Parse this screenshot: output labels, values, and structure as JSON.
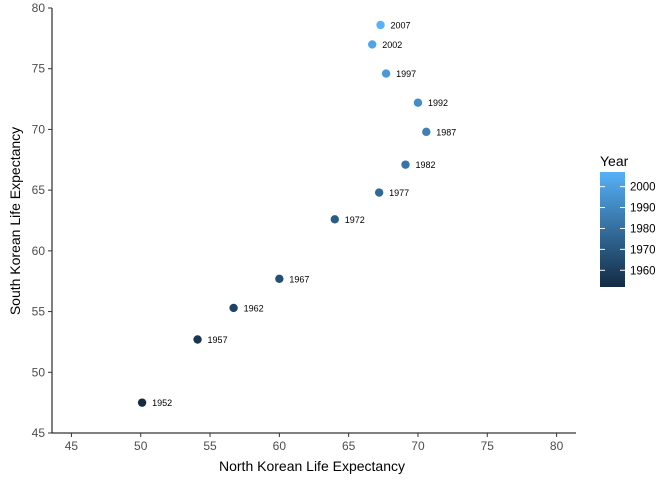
{
  "chart_data": {
    "type": "scatter",
    "title": "",
    "xlabel": "North Korean Life Expectancy",
    "ylabel": "South Korean Life Expectancy",
    "xlim": [
      43.6,
      81.4
    ],
    "ylim": [
      45,
      80
    ],
    "xticks": [
      45,
      50,
      55,
      60,
      65,
      70,
      75,
      80
    ],
    "yticks": [
      45,
      50,
      55,
      60,
      65,
      70,
      75,
      80
    ],
    "grid": false,
    "points": [
      {
        "label": "1952",
        "year": 1952,
        "x": 50.1,
        "y": 47.5
      },
      {
        "label": "1957",
        "year": 1957,
        "x": 54.1,
        "y": 52.7
      },
      {
        "label": "1962",
        "year": 1962,
        "x": 56.7,
        "y": 55.3
      },
      {
        "label": "1967",
        "year": 1967,
        "x": 60.0,
        "y": 57.7
      },
      {
        "label": "1972",
        "year": 1972,
        "x": 64.0,
        "y": 62.6
      },
      {
        "label": "1977",
        "year": 1977,
        "x": 67.2,
        "y": 64.8
      },
      {
        "label": "1982",
        "year": 1982,
        "x": 69.1,
        "y": 67.1
      },
      {
        "label": "1987",
        "year": 1987,
        "x": 70.6,
        "y": 69.8
      },
      {
        "label": "1992",
        "year": 1992,
        "x": 70.0,
        "y": 72.2
      },
      {
        "label": "1997",
        "year": 1997,
        "x": 67.7,
        "y": 74.6
      },
      {
        "label": "2002",
        "year": 2002,
        "x": 66.7,
        "y": 77.0
      },
      {
        "label": "2007",
        "year": 2007,
        "x": 67.3,
        "y": 78.6
      }
    ],
    "color_scale": {
      "title": "Year",
      "range": [
        1952,
        2007
      ],
      "ticks": [
        1960,
        1970,
        1980,
        1990,
        2000
      ],
      "low_color": "#132B43",
      "high_color": "#56B1F7"
    },
    "legend_placement": "right"
  }
}
